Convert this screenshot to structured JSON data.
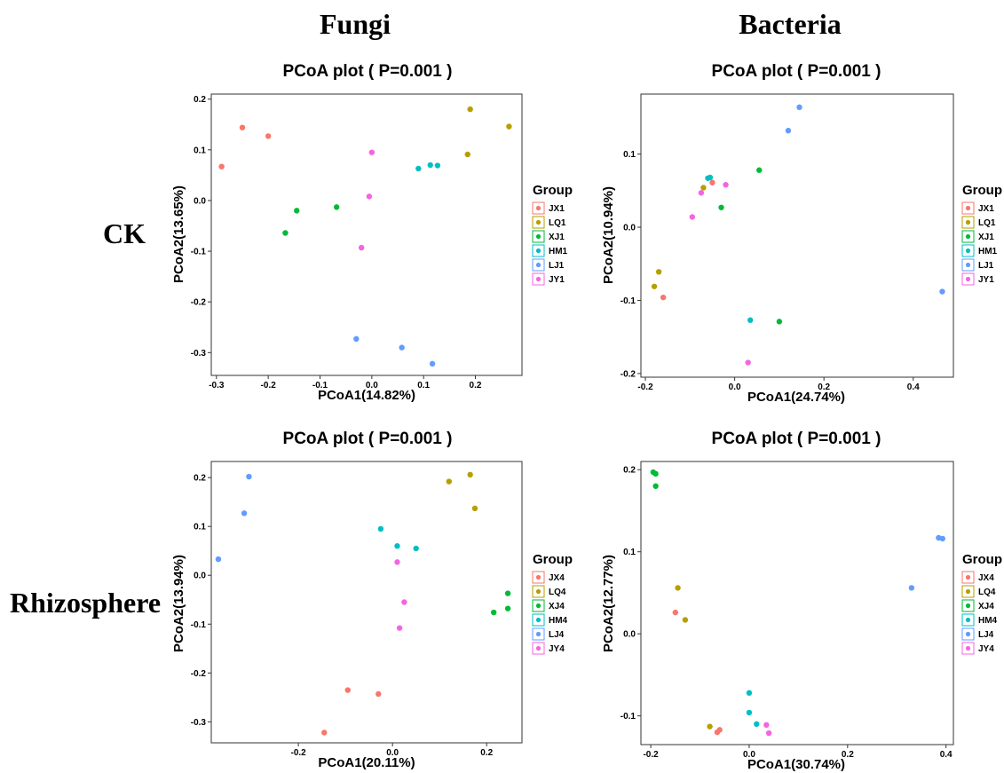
{
  "column_headers": [
    "Fungi",
    "Bacteria"
  ],
  "row_headers": [
    "CK",
    "Rhizosphere"
  ],
  "colors": [
    "#F8766D",
    "#B79F00",
    "#00BA38",
    "#00BFC4",
    "#619CFF",
    "#F564E3"
  ],
  "chart_data": [
    {
      "type": "scatter",
      "title": "PCoA plot ( P=0.001 )",
      "xlabel": "PCoA1(14.82%)",
      "ylabel": "PCoA2(13.65%)",
      "xlim": [
        -0.31,
        0.29
      ],
      "ylim": [
        -0.345,
        0.21
      ],
      "xticks": [
        -0.3,
        -0.2,
        -0.1,
        0.0,
        0.1,
        0.2
      ],
      "xtick_labels": [
        "-0.3",
        "-0.2",
        "-0.1",
        "0.0",
        "0.1",
        "0.2"
      ],
      "yticks": [
        0.2,
        0.1,
        0.0,
        -0.1,
        -0.2,
        -0.3
      ],
      "ytick_labels": [
        "0.2",
        "0.1",
        "0.0",
        "-0.1",
        "-0.2",
        "-0.3"
      ],
      "grid": false,
      "legend": {
        "title": "Group",
        "position": "right"
      },
      "series": [
        {
          "name": "JX1",
          "x": [
            -0.29,
            -0.25,
            -0.2
          ],
          "y": [
            0.067,
            0.144,
            0.127
          ]
        },
        {
          "name": "LQ1",
          "x": [
            0.19,
            0.265,
            0.185
          ],
          "y": [
            0.18,
            0.146,
            0.091
          ]
        },
        {
          "name": "XJ1",
          "x": [
            -0.145,
            -0.068,
            -0.167
          ],
          "y": [
            -0.02,
            -0.013,
            -0.064
          ]
        },
        {
          "name": "HM1",
          "x": [
            0.09,
            0.113,
            0.127
          ],
          "y": [
            0.063,
            0.07,
            0.069
          ]
        },
        {
          "name": "LJ1",
          "x": [
            -0.03,
            0.058,
            0.117
          ],
          "y": [
            -0.273,
            -0.29,
            -0.322
          ]
        },
        {
          "name": "JY1",
          "x": [
            0.0,
            -0.005,
            -0.02
          ],
          "y": [
            0.095,
            0.008,
            -0.093
          ]
        }
      ]
    },
    {
      "type": "scatter",
      "title": "PCoA plot ( P=0.001 )",
      "xlabel": "PCoA1(24.74%)",
      "ylabel": "PCoA2(10.94%)",
      "xlim": [
        -0.21,
        0.49
      ],
      "ylim": [
        -0.205,
        0.182
      ],
      "xticks": [
        -0.2,
        0.0,
        0.2,
        0.4
      ],
      "xtick_labels": [
        "-0.2",
        "0.0",
        "0.2",
        "0.4"
      ],
      "yticks": [
        0.1,
        0.0,
        -0.1,
        -0.2
      ],
      "ytick_labels": [
        "0.1",
        "0.0",
        "-0.1",
        "-0.2"
      ],
      "grid": false,
      "legend": {
        "title": "Group",
        "position": "right"
      },
      "series": [
        {
          "name": "JX1",
          "x": [
            -0.05,
            -0.16
          ],
          "y": [
            0.061,
            -0.096
          ]
        },
        {
          "name": "LQ1",
          "x": [
            -0.07,
            -0.17,
            -0.18
          ],
          "y": [
            0.054,
            -0.061,
            -0.081
          ]
        },
        {
          "name": "XJ1",
          "x": [
            0.055,
            -0.03,
            0.1
          ],
          "y": [
            0.078,
            0.027,
            -0.129
          ]
        },
        {
          "name": "HM1",
          "x": [
            -0.06,
            -0.055,
            0.035
          ],
          "y": [
            0.067,
            0.068,
            -0.127
          ]
        },
        {
          "name": "LJ1",
          "x": [
            0.145,
            0.12,
            0.465
          ],
          "y": [
            0.164,
            0.132,
            -0.088
          ]
        },
        {
          "name": "JY1",
          "x": [
            -0.075,
            -0.02,
            -0.095,
            0.03
          ],
          "y": [
            0.047,
            0.058,
            0.014,
            -0.185
          ]
        }
      ]
    },
    {
      "type": "scatter",
      "title": "PCoA plot ( P=0.001 )",
      "xlabel": "PCoA1(20.11%)",
      "ylabel": "PCoA2(13.94%)",
      "xlim": [
        -0.385,
        0.275
      ],
      "ylim": [
        -0.343,
        0.233
      ],
      "xticks": [
        -0.2,
        0.0,
        0.2
      ],
      "xtick_labels": [
        "-0.2",
        "0.0",
        "0.2"
      ],
      "yticks": [
        0.2,
        0.1,
        0.0,
        -0.1,
        -0.2,
        -0.3
      ],
      "ytick_labels": [
        "0.2",
        "0.1",
        "0.0",
        "-0.1",
        "-0.2",
        "-0.3"
      ],
      "grid": false,
      "legend": {
        "title": "Group",
        "position": "right"
      },
      "series": [
        {
          "name": "JX4",
          "x": [
            -0.095,
            -0.03,
            -0.145
          ],
          "y": [
            -0.235,
            -0.243,
            -0.322
          ]
        },
        {
          "name": "LQ4",
          "x": [
            0.12,
            0.165,
            0.175
          ],
          "y": [
            0.192,
            0.206,
            0.137
          ]
        },
        {
          "name": "XJ4",
          "x": [
            0.245,
            0.215,
            0.245
          ],
          "y": [
            -0.037,
            -0.076,
            -0.068
          ]
        },
        {
          "name": "HM4",
          "x": [
            -0.025,
            0.01,
            0.05
          ],
          "y": [
            0.095,
            0.06,
            0.055
          ]
        },
        {
          "name": "LJ4",
          "x": [
            -0.305,
            -0.315,
            -0.37
          ],
          "y": [
            0.202,
            0.127,
            0.033
          ]
        },
        {
          "name": "JY4",
          "x": [
            0.01,
            0.025,
            0.015
          ],
          "y": [
            0.027,
            -0.055,
            -0.108
          ]
        }
      ]
    },
    {
      "type": "scatter",
      "title": "PCoA plot ( P=0.001 )",
      "xlabel": "PCoA1(30.74%)",
      "ylabel": "PCoA2(12.77%)",
      "xlim": [
        -0.22,
        0.415
      ],
      "ylim": [
        -0.135,
        0.21
      ],
      "xticks": [
        -0.2,
        0.0,
        0.2,
        0.4
      ],
      "xtick_labels": [
        "-0.2",
        "0.0",
        "0.2",
        "0.4"
      ],
      "yticks": [
        0.2,
        0.1,
        0.0,
        -0.1
      ],
      "ytick_labels": [
        "0.2",
        "0.1",
        "0.0",
        "-0.1"
      ],
      "grid": false,
      "legend": {
        "title": "Group",
        "position": "right"
      },
      "series": [
        {
          "name": "JX4",
          "x": [
            -0.15,
            -0.065,
            -0.06
          ],
          "y": [
            0.026,
            -0.12,
            -0.117
          ]
        },
        {
          "name": "LQ4",
          "x": [
            -0.145,
            -0.13,
            -0.08
          ],
          "y": [
            0.056,
            0.017,
            -0.113
          ]
        },
        {
          "name": "XJ4",
          "x": [
            -0.195,
            -0.19,
            -0.19
          ],
          "y": [
            0.197,
            0.195,
            0.18
          ]
        },
        {
          "name": "HM4",
          "x": [
            0.0,
            0.0,
            0.015
          ],
          "y": [
            -0.072,
            -0.096,
            -0.11
          ]
        },
        {
          "name": "LJ4",
          "x": [
            0.385,
            0.393,
            0.33
          ],
          "y": [
            0.117,
            0.116,
            0.056
          ]
        },
        {
          "name": "JY4",
          "x": [
            0.035,
            0.04
          ],
          "y": [
            -0.111,
            -0.121
          ]
        }
      ]
    }
  ]
}
